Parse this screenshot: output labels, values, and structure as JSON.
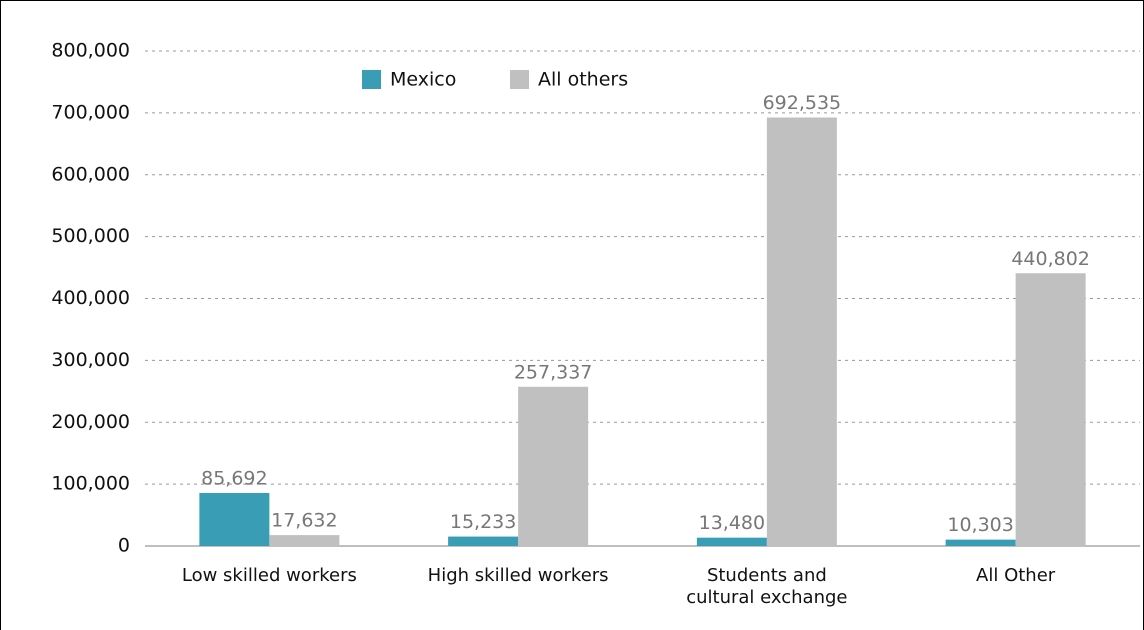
{
  "chart_data": {
    "type": "bar",
    "categories": [
      "Low skilled workers",
      "High skilled workers",
      "Students and cultural exchange",
      "All Other"
    ],
    "series": [
      {
        "name": "Mexico",
        "color": "#3a9db6",
        "values": [
          85692,
          15233,
          13480,
          10303
        ],
        "value_labels": [
          "85,692",
          "15,233",
          "13,480",
          "10,303"
        ]
      },
      {
        "name": "All others",
        "color": "#c0c0c0",
        "values": [
          17632,
          257337,
          692535,
          440802
        ],
        "value_labels": [
          "17,632",
          "257,337",
          "692,535",
          "440,802"
        ]
      }
    ],
    "ylim": [
      0,
      800000
    ],
    "yticks": [
      0,
      {
        "value": 100000,
        "label": "100,000"
      },
      {
        "value": 200000,
        "label": "200,000"
      },
      {
        "value": 300000,
        "label": "300,000"
      },
      {
        "value": 400000,
        "label": "400,000"
      },
      {
        "value": 500000,
        "label": "500,000"
      },
      {
        "value": 600000,
        "label": "600,000"
      },
      {
        "value": 700000,
        "label": "700,000"
      },
      {
        "value": 800000,
        "label": "800,000"
      }
    ],
    "grid": true
  }
}
